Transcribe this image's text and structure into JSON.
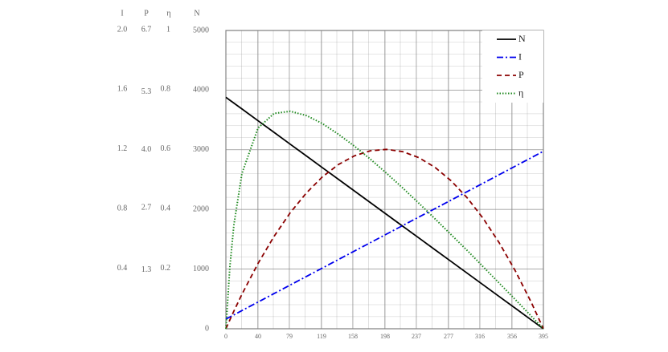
{
  "chart_data": {
    "type": "line",
    "x": [
      0,
      5,
      10,
      20,
      40,
      60,
      80,
      100,
      120,
      140,
      160,
      180,
      200,
      220,
      240,
      260,
      280,
      300,
      320,
      340,
      360,
      380,
      395
    ],
    "xlim": [
      0,
      395
    ],
    "xticks": [
      0,
      40,
      79,
      119,
      158,
      198,
      237,
      277,
      316,
      356,
      395
    ],
    "grid": true,
    "legend": "top-right",
    "axes": [
      {
        "name": "I",
        "lim": [
          0,
          2
        ],
        "ticks": [
          {
            "value": 0.4,
            "label": "0.4"
          },
          {
            "value": 0.8,
            "label": "0.8"
          },
          {
            "value": 1.2,
            "label": "1.2"
          },
          {
            "value": 1.6,
            "label": "1.6"
          },
          {
            "value": 2,
            "label": "2.0"
          }
        ]
      },
      {
        "name": "P",
        "lim": [
          0,
          6.7
        ],
        "ticks": [
          1.3,
          2.7,
          {
            "value": 4,
            "label": "4.0"
          },
          5.3,
          6.7
        ]
      },
      {
        "name": "η",
        "lim": [
          0,
          1
        ],
        "ticks": [
          0.2,
          0.4,
          0.6,
          0.8,
          1
        ]
      },
      {
        "name": "N",
        "lim": [
          0,
          5000
        ],
        "ticks": [
          0,
          1000,
          2000,
          3000,
          4000,
          5000
        ]
      }
    ],
    "series": [
      {
        "name": "N",
        "color": "#000000",
        "dash": "solid",
        "axis": 3,
        "values": [
          3880,
          3831,
          3782,
          3684,
          3487,
          3291,
          3094,
          2898,
          2701,
          2505,
          2308,
          2112,
          1915,
          1719,
          1523,
          1326,
          1130,
          933,
          737,
          540,
          344,
          147,
          0
        ]
      },
      {
        "name": "I",
        "color": "#0000ee",
        "dash": "dashdot",
        "axis": 0,
        "values": [
          0.065,
          0.079,
          0.093,
          0.122,
          0.179,
          0.236,
          0.293,
          0.35,
          0.407,
          0.464,
          0.521,
          0.578,
          0.635,
          0.692,
          0.749,
          0.805,
          0.862,
          0.919,
          0.976,
          1.033,
          1.09,
          1.147,
          1.19
        ]
      },
      {
        "name": "P",
        "color": "#8b0000",
        "dash": "dash",
        "axis": 1,
        "values": [
          0,
          0.201,
          0.398,
          0.775,
          1.467,
          2.077,
          2.604,
          3.048,
          3.41,
          3.689,
          3.885,
          3.998,
          4.029,
          3.978,
          3.844,
          3.627,
          3.327,
          2.945,
          2.48,
          1.932,
          1.302,
          0.589,
          0
        ]
      },
      {
        "name": "η",
        "color": "#228b22",
        "dash": "dot",
        "axis": 2,
        "values": [
          0,
          0.209,
          0.349,
          0.521,
          0.673,
          0.722,
          0.729,
          0.715,
          0.688,
          0.652,
          0.612,
          0.568,
          0.521,
          0.472,
          0.421,
          0.369,
          0.316,
          0.263,
          0.208,
          0.153,
          0.098,
          0.042,
          0
        ]
      }
    ]
  }
}
